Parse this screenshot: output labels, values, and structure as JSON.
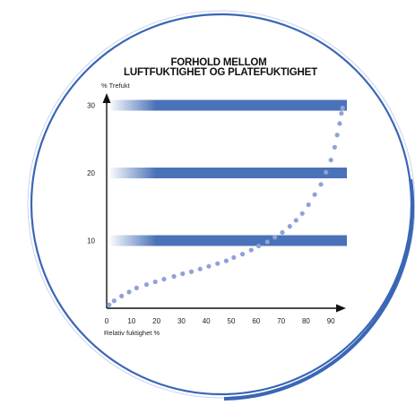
{
  "chart_data": {
    "type": "scatter",
    "title_lines": [
      "FORHOLD MELLOM",
      "LUFTFUKTIGHET OG PLATEFUKTIGHET"
    ],
    "xlabel": "Relativ fuktighet %",
    "ylabel": "% Trefukt",
    "x_ticks": [
      0,
      10,
      20,
      30,
      40,
      50,
      60,
      70,
      80,
      90
    ],
    "y_ticks": [
      10,
      20,
      30
    ],
    "xlim": [
      0,
      96
    ],
    "ylim": [
      0,
      33
    ],
    "bands": [
      10,
      20,
      30
    ],
    "colors": {
      "band": "#4a72b8",
      "points": "#8fa2d8",
      "frame": "#3a66b6",
      "axis": "#111111"
    },
    "series": [
      {
        "values": [
          [
            1,
            0.5
          ],
          [
            3,
            1.1
          ],
          [
            6,
            1.8
          ],
          [
            9,
            2.4
          ],
          [
            12,
            3.0
          ],
          [
            16,
            3.5
          ],
          [
            19.5,
            3.9
          ],
          [
            23,
            4.3
          ],
          [
            27,
            4.7
          ],
          [
            30.5,
            5.1
          ],
          [
            34,
            5.4
          ],
          [
            37.5,
            5.8
          ],
          [
            41,
            6.2
          ],
          [
            44.5,
            6.6
          ],
          [
            48,
            7.0
          ],
          [
            51,
            7.5
          ],
          [
            54.5,
            8.0
          ],
          [
            58,
            8.6
          ],
          [
            61,
            9.2
          ],
          [
            64.5,
            9.8
          ],
          [
            67.5,
            10.5
          ],
          [
            70.5,
            11.2
          ],
          [
            73.5,
            12.1
          ],
          [
            76,
            13.0
          ],
          [
            78.5,
            14.0
          ],
          [
            81,
            15.3
          ],
          [
            83.5,
            16.8
          ],
          [
            86,
            18.3
          ],
          [
            88,
            20.1
          ],
          [
            90,
            21.9
          ],
          [
            91.5,
            23.8
          ],
          [
            92.5,
            25.6
          ],
          [
            93.5,
            27.3
          ],
          [
            94.2,
            28.8
          ],
          [
            94.7,
            29.6
          ]
        ]
      }
    ]
  }
}
